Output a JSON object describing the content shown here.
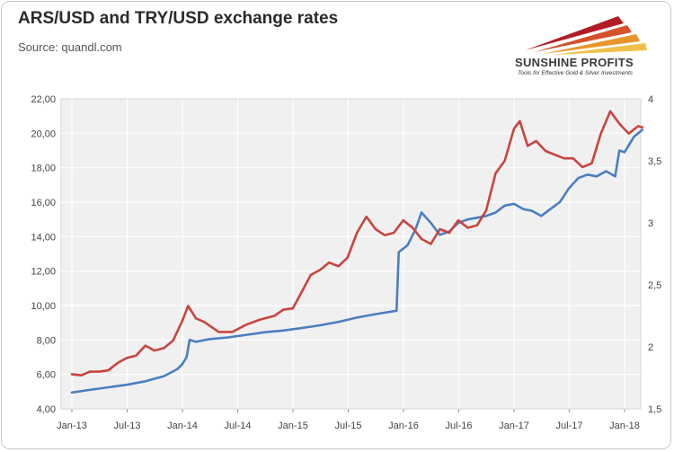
{
  "title": "ARS/USD and TRY/USD exchange rates",
  "source": "Source: quandl.com",
  "logo": {
    "name": "SUNSHINE PROFITS",
    "tagline": "Tools for Effective Gold & Silver Investments"
  },
  "chart_data": {
    "type": "line",
    "x_tick_labels": [
      "Jan-13",
      "Jul-13",
      "Jan-14",
      "Jul-14",
      "Jan-15",
      "Jul-15",
      "Jan-16",
      "Jul-16",
      "Jan-17",
      "Jul-17",
      "Jan-18"
    ],
    "y_left": {
      "ylim": [
        4,
        22
      ],
      "ticks": [
        "4,00",
        "6,00",
        "8,00",
        "10,00",
        "12,00",
        "14,00",
        "16,00",
        "18,00",
        "20,00",
        "22,00"
      ]
    },
    "y_right": {
      "ylim": [
        1.5,
        4
      ],
      "ticks": [
        "1,5",
        "2",
        "2,5",
        "3",
        "3,5",
        "4"
      ]
    },
    "grid": true,
    "series": [
      {
        "axis": "left",
        "color": "#4a7fc1",
        "points": [
          [
            "2013-01-01",
            4.95
          ],
          [
            "2013-03-01",
            5.1
          ],
          [
            "2013-05-01",
            5.25
          ],
          [
            "2013-07-01",
            5.4
          ],
          [
            "2013-09-01",
            5.6
          ],
          [
            "2013-11-01",
            5.9
          ],
          [
            "2013-12-15",
            6.3
          ],
          [
            "2014-01-01",
            6.6
          ],
          [
            "2014-01-15",
            7.0
          ],
          [
            "2014-01-25",
            8.0
          ],
          [
            "2014-02-15",
            7.9
          ],
          [
            "2014-04-01",
            8.05
          ],
          [
            "2014-06-01",
            8.15
          ],
          [
            "2014-08-01",
            8.3
          ],
          [
            "2014-10-01",
            8.45
          ],
          [
            "2014-12-01",
            8.55
          ],
          [
            "2015-02-01",
            8.7
          ],
          [
            "2015-04-01",
            8.85
          ],
          [
            "2015-06-01",
            9.05
          ],
          [
            "2015-08-01",
            9.3
          ],
          [
            "2015-10-01",
            9.5
          ],
          [
            "2015-12-10",
            9.7
          ],
          [
            "2015-12-17",
            13.1
          ],
          [
            "2016-01-15",
            13.5
          ],
          [
            "2016-02-10",
            14.4
          ],
          [
            "2016-03-01",
            15.4
          ],
          [
            "2016-04-01",
            14.8
          ],
          [
            "2016-05-01",
            14.1
          ],
          [
            "2016-06-01",
            14.3
          ],
          [
            "2016-07-01",
            14.8
          ],
          [
            "2016-08-01",
            15.0
          ],
          [
            "2016-09-01",
            15.1
          ],
          [
            "2016-10-01",
            15.2
          ],
          [
            "2016-11-01",
            15.4
          ],
          [
            "2016-12-01",
            15.8
          ],
          [
            "2017-01-01",
            15.9
          ],
          [
            "2017-02-01",
            15.6
          ],
          [
            "2017-03-01",
            15.5
          ],
          [
            "2017-04-01",
            15.2
          ],
          [
            "2017-05-01",
            15.6
          ],
          [
            "2017-06-01",
            16.0
          ],
          [
            "2017-07-01",
            16.8
          ],
          [
            "2017-08-01",
            17.4
          ],
          [
            "2017-09-01",
            17.6
          ],
          [
            "2017-10-01",
            17.5
          ],
          [
            "2017-11-01",
            17.8
          ],
          [
            "2017-12-01",
            17.5
          ],
          [
            "2017-12-15",
            19.0
          ],
          [
            "2018-01-01",
            18.9
          ],
          [
            "2018-02-01",
            19.8
          ],
          [
            "2018-03-01",
            20.2
          ]
        ]
      },
      {
        "axis": "right",
        "color": "#c9443f",
        "points": [
          [
            "2013-01-01",
            1.78
          ],
          [
            "2013-02-01",
            1.77
          ],
          [
            "2013-03-01",
            1.8
          ],
          [
            "2013-04-01",
            1.8
          ],
          [
            "2013-05-01",
            1.81
          ],
          [
            "2013-06-01",
            1.87
          ],
          [
            "2013-07-01",
            1.91
          ],
          [
            "2013-08-01",
            1.93
          ],
          [
            "2013-09-01",
            2.01
          ],
          [
            "2013-10-01",
            1.97
          ],
          [
            "2013-11-01",
            1.99
          ],
          [
            "2013-12-01",
            2.05
          ],
          [
            "2014-01-01",
            2.21
          ],
          [
            "2014-01-20",
            2.33
          ],
          [
            "2014-02-15",
            2.23
          ],
          [
            "2014-03-15",
            2.2
          ],
          [
            "2014-05-01",
            2.12
          ],
          [
            "2014-06-15",
            2.12
          ],
          [
            "2014-08-01",
            2.18
          ],
          [
            "2014-09-15",
            2.22
          ],
          [
            "2014-11-01",
            2.25
          ],
          [
            "2014-12-01",
            2.3
          ],
          [
            "2015-01-01",
            2.31
          ],
          [
            "2015-02-01",
            2.45
          ],
          [
            "2015-03-01",
            2.58
          ],
          [
            "2015-04-01",
            2.62
          ],
          [
            "2015-05-01",
            2.68
          ],
          [
            "2015-06-01",
            2.65
          ],
          [
            "2015-07-01",
            2.72
          ],
          [
            "2015-08-01",
            2.92
          ],
          [
            "2015-09-01",
            3.05
          ],
          [
            "2015-10-01",
            2.95
          ],
          [
            "2015-11-01",
            2.9
          ],
          [
            "2015-12-01",
            2.92
          ],
          [
            "2016-01-01",
            3.02
          ],
          [
            "2016-02-01",
            2.96
          ],
          [
            "2016-03-01",
            2.87
          ],
          [
            "2016-04-01",
            2.83
          ],
          [
            "2016-05-01",
            2.95
          ],
          [
            "2016-06-01",
            2.92
          ],
          [
            "2016-07-01",
            3.02
          ],
          [
            "2016-08-01",
            2.96
          ],
          [
            "2016-09-01",
            2.98
          ],
          [
            "2016-10-01",
            3.1
          ],
          [
            "2016-11-01",
            3.4
          ],
          [
            "2016-12-01",
            3.5
          ],
          [
            "2017-01-01",
            3.76
          ],
          [
            "2017-01-20",
            3.82
          ],
          [
            "2017-02-15",
            3.62
          ],
          [
            "2017-03-15",
            3.66
          ],
          [
            "2017-04-15",
            3.58
          ],
          [
            "2017-05-15",
            3.55
          ],
          [
            "2017-06-15",
            3.52
          ],
          [
            "2017-07-15",
            3.52
          ],
          [
            "2017-08-15",
            3.45
          ],
          [
            "2017-09-15",
            3.48
          ],
          [
            "2017-10-15",
            3.72
          ],
          [
            "2017-11-15",
            3.9
          ],
          [
            "2017-12-15",
            3.8
          ],
          [
            "2018-01-15",
            3.72
          ],
          [
            "2018-02-15",
            3.78
          ],
          [
            "2018-03-01",
            3.77
          ]
        ]
      }
    ]
  }
}
